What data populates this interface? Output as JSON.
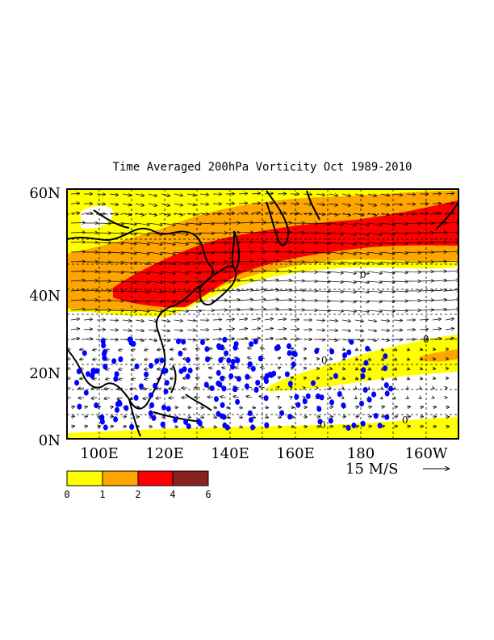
{
  "title": "Time Averaged 200hPa Vorticity  Oct 1989-2010",
  "lat_ticks": [
    "60N",
    "40N",
    "20N",
    "0N"
  ],
  "lon_ticks": [
    "100E",
    "120E",
    "140E",
    "160E",
    "180",
    "160W"
  ],
  "vector_reference": "15 M/S",
  "colorbar": {
    "labels": [
      "0",
      "1",
      "2",
      "4",
      "6"
    ],
    "colors": [
      "#ffff00",
      "#ffa500",
      "#ff0000",
      "#8b2222"
    ]
  },
  "contour_zero_label": "0",
  "colors": {
    "yellow": "#ffff00",
    "orange": "#ffa500",
    "red": "#ff0000",
    "dots": "#0000ff",
    "land": "#000000"
  }
}
